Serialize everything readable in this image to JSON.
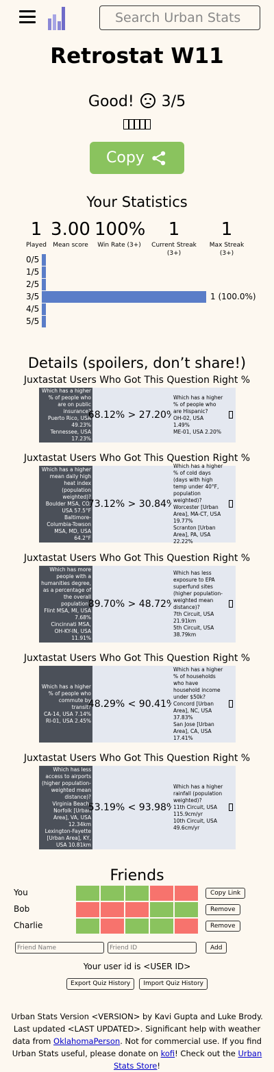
{
  "header": {
    "search_placeholder": "Search Urban Stats"
  },
  "title": "Retrostat W11",
  "result": {
    "verdict": "Good!",
    "score": "3/5",
    "emoji_count": 5
  },
  "copy_button": {
    "label": "Copy"
  },
  "statistics": {
    "title": "Your Statistics",
    "items": [
      {
        "value": "1",
        "label": "Played"
      },
      {
        "value": "3.00",
        "label": "Mean score"
      },
      {
        "value": "100%",
        "label": "Win Rate (3+)"
      },
      {
        "value": "1",
        "label": "Current Streak (3+)"
      },
      {
        "value": "1",
        "label": "Max Streak (3+)"
      }
    ],
    "distribution": [
      {
        "label": "0/5",
        "fraction": 0,
        "text": ""
      },
      {
        "label": "1/5",
        "fraction": 0,
        "text": ""
      },
      {
        "label": "2/5",
        "fraction": 0,
        "text": ""
      },
      {
        "label": "3/5",
        "fraction": 1.0,
        "text": "1 (100.0%)"
      },
      {
        "label": "4/5",
        "fraction": 0,
        "text": ""
      },
      {
        "label": "5/5",
        "fraction": 0,
        "text": ""
      }
    ],
    "bar_color": "#5a7dc8"
  },
  "details": {
    "title": "Details (spoilers, don’t share!)",
    "questions": [
      {
        "heading": "Juxtastat Users Who Got This Question Right %",
        "left": [
          "Which has a higher % of people who are on public insurance?",
          "Puerto Rico, USA 49.23%",
          "Tennessee, USA 17.23%"
        ],
        "comparison": "68.12% > 27.20%",
        "right": [
          "Which has a higher % of people who are Hispanic?",
          "OH-02, USA",
          "1.49%",
          "ME-01, USA 2.20%"
        ]
      },
      {
        "heading": "Juxtastat Users Who Got This Question Right %",
        "left": [
          "Which has a higher mean daily high heat index (population weighted)?",
          "Boulder MSA, CO, USA 57.5°F",
          "Baltimore-Columbia-Towson MSA, MD, USA 64.2°F"
        ],
        "comparison": "73.12% > 30.84%",
        "right": [
          "Which has a higher % of cold days (days with high temp under 40°F, population weighted)?",
          "Worcester [Urban Area], MA-CT, USA",
          "19.77%",
          "Scranton [Urban Area], PA, USA",
          "22.22%"
        ]
      },
      {
        "heading": "Juxtastat Users Who Got This Question Right %",
        "left": [
          "Which has more people with a humanities degree, as a percentage of the overall population?",
          "Flint MSA, MI, USA 7.68%",
          "Cincinnati MSA, OH-KY-IN, USA 11.91%"
        ],
        "comparison": "89.70% > 48.72%",
        "right": [
          "Which has less exposure to EPA superfund sites (higher population-weighted mean distance)?",
          "7th Circuit, USA",
          "21.91km",
          "5th Circuit, USA",
          "38.79km"
        ]
      },
      {
        "heading": "Juxtastat Users Who Got This Question Right %",
        "left": [
          "Which has a higher % of people who commute by transit?",
          "CA-14, USA 7.14%",
          "RI-01, USA 2.45%"
        ],
        "comparison": "48.29% < 90.41%",
        "right": [
          "Which has a higher % of households who have household income under $50k?",
          "Concord [Urban Area], NC, USA",
          "37.83%",
          "San Jose [Urban Area], CA, USA",
          "17.41%"
        ]
      },
      {
        "heading": "Juxtastat Users Who Got This Question Right %",
        "left": [
          "Which has less access to airports (higher population-weighted mean distance)?",
          "Virginia Beach-Norfolk [Urban Area], VA, USA 12.34km",
          "Lexington-Fayette [Urban Area], KY, USA 10.81km"
        ],
        "comparison": "53.19% < 93.98%",
        "right": [
          "Which has a higher rainfall (population weighted)?",
          "11th Circuit, USA",
          "115.9cm/yr",
          "10th Circuit, USA",
          "49.6cm/yr"
        ]
      }
    ]
  },
  "friends": {
    "title": "Friends",
    "rows": [
      {
        "name": "You",
        "cells": [
          "g",
          "g",
          "g",
          "r",
          "r"
        ],
        "button": "Copy Link"
      },
      {
        "name": "Bob",
        "cells": [
          "r",
          "r",
          "r",
          "g",
          "g"
        ],
        "button": "Remove"
      },
      {
        "name": "Charlie",
        "cells": [
          "g",
          "r",
          "g",
          "g",
          "r"
        ],
        "button": "Remove"
      }
    ],
    "name_placeholder": "Friend Name",
    "id_placeholder": "Friend ID",
    "add_label": "Add",
    "user_id_text": "Your user id is <USER ID>",
    "export_label": "Export Quiz History",
    "import_label": "Import Quiz History"
  },
  "footer": {
    "text1": "Urban Stats Version <VERSION> by Kavi Gupta and Luke Brody. Last updated <LAST UPDATED>. Significant help with weather data from ",
    "link1": "OklahomaPerson",
    "text2": ". Not for commercial use. If you find Urban Stats useful, please donate on ",
    "link2": "kofi",
    "text3": "! Check out the ",
    "link3": "Urban Stats Store",
    "text4": "!"
  },
  "colors": {
    "green": "#8ac35e",
    "red": "#f7736d",
    "dark_panel": "#4b5059",
    "light_panel": "#e4e8f0",
    "background": "#fdf8f0"
  }
}
